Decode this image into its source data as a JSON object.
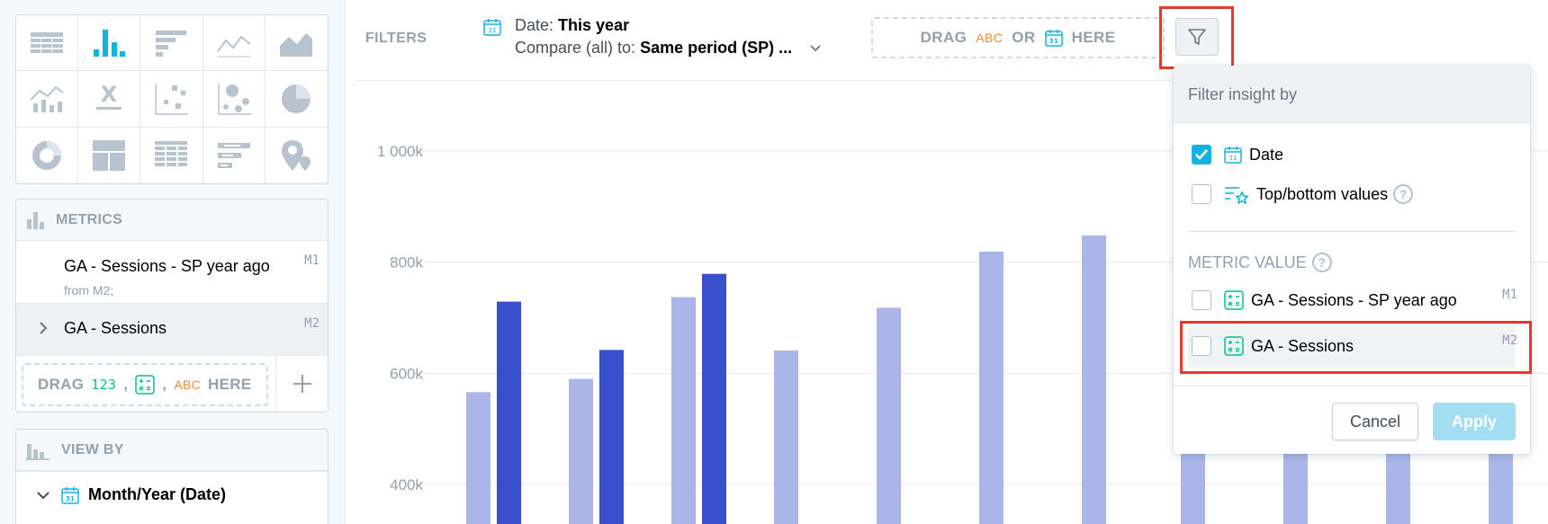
{
  "sidebar": {
    "viz_types": [
      {
        "icon": "table-icon",
        "active": false
      },
      {
        "icon": "column-chart-icon",
        "active": true
      },
      {
        "icon": "bar-chart-icon",
        "active": false
      },
      {
        "icon": "line-chart-icon",
        "active": false
      },
      {
        "icon": "area-chart-icon",
        "active": false
      },
      {
        "icon": "combo-chart-icon",
        "active": false
      },
      {
        "icon": "headline-icon",
        "active": false
      },
      {
        "icon": "scatter-plot-icon",
        "active": false
      },
      {
        "icon": "bubble-chart-icon",
        "active": false
      },
      {
        "icon": "pie-chart-icon",
        "active": false
      },
      {
        "icon": "donut-chart-icon",
        "active": false
      },
      {
        "icon": "treemap-icon",
        "active": false
      },
      {
        "icon": "heatmap-icon",
        "active": false
      },
      {
        "icon": "bullet-chart-icon",
        "active": false
      },
      {
        "icon": "geo-chart-icon",
        "active": false
      }
    ],
    "metrics": {
      "title": "METRICS",
      "items": [
        {
          "name": "GA - Sessions - SP year ago",
          "sub": "from M2;",
          "id": "M1"
        },
        {
          "name": "GA - Sessions",
          "id": "M2"
        }
      ],
      "drag": {
        "prefix": "DRAG",
        "num": "123",
        "sep": ",",
        "abc": "ABC",
        "suffix": "HERE"
      }
    },
    "view_by": {
      "title": "VIEW BY",
      "item": "Month/Year (Date)"
    }
  },
  "filter_bar": {
    "label": "FILTERS",
    "date_prefix": "Date:",
    "date_value": "This year",
    "compare_prefix": "Compare (all) to:",
    "compare_value": "Same period (SP) ...",
    "drop": {
      "drag": "DRAG",
      "abc": "ABC",
      "or": "OR",
      "here": "HERE"
    }
  },
  "popover": {
    "title": "Filter insight by",
    "options": [
      {
        "label": "Date",
        "checked": true
      },
      {
        "label": "Top/bottom values",
        "checked": false
      }
    ],
    "metric_section": "METRIC VALUE",
    "metric_options": [
      {
        "label": "GA - Sessions - SP year ago",
        "id": "M1",
        "checked": false
      },
      {
        "label": "GA - Sessions",
        "id": "M2",
        "checked": false
      }
    ],
    "cancel": "Cancel",
    "apply": "Apply"
  },
  "colors": {
    "sp_series": "#aab6e8",
    "current_series": "#3a4fcc",
    "highlight": "#e6392b",
    "accent": "#14b2e2"
  },
  "chart_data": {
    "type": "bar",
    "y_ticks": [
      "1 000k",
      "800k",
      "600k",
      "400k"
    ],
    "y_tick_values": [
      1000000,
      800000,
      600000,
      400000
    ],
    "series": [
      {
        "values": [
          566000,
          590000,
          737000,
          641000,
          718000,
          819000,
          848000
        ]
      },
      {
        "values": [
          729000,
          642000,
          779000
        ]
      }
    ]
  }
}
